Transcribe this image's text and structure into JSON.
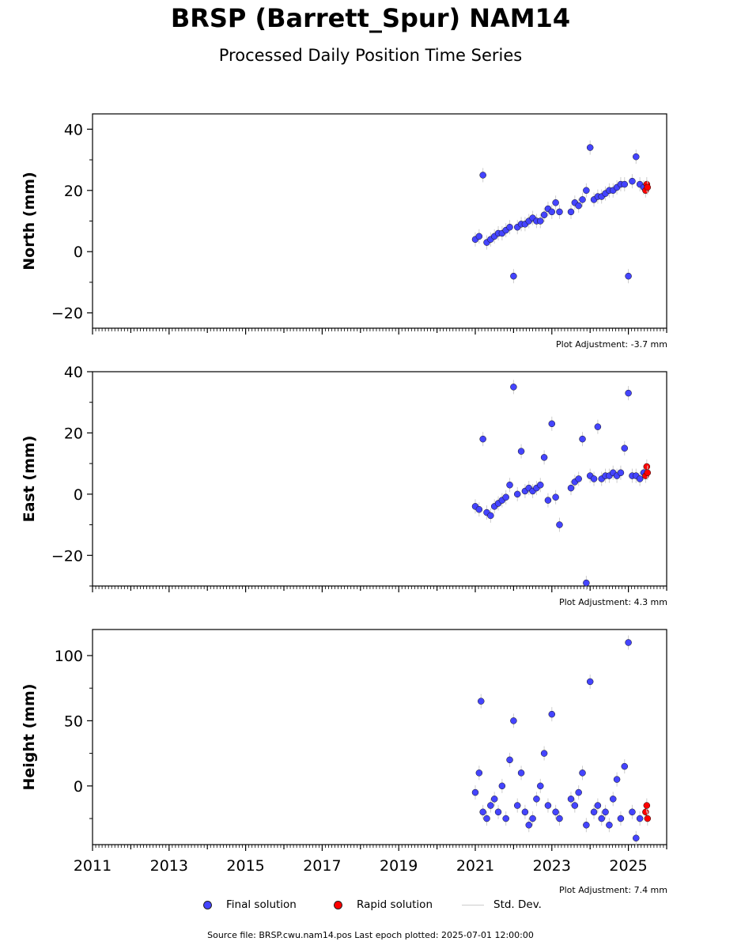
{
  "title": "BRSP (Barrett_Spur) NAM14",
  "subtitle": "Processed Daily Position Time Series",
  "legend": {
    "final": "Final solution",
    "rapid": "Rapid solution",
    "std": "Std. Dev."
  },
  "colors": {
    "final": "#4444ff",
    "rapid": "#ff0000",
    "std": "#cccccc"
  },
  "footer": "Source file: BRSP.cwu.nam14.pos  Last epoch plotted: 2025-07-01 12:00:00",
  "chart_data": [
    {
      "type": "scatter",
      "ylabel": "North (mm)",
      "xlim": [
        2011,
        2026
      ],
      "ylim": [
        -25,
        45
      ],
      "yticks": [
        -20,
        0,
        20,
        40
      ],
      "adjustment": "Plot Adjustment: -3.7 mm",
      "series": [
        {
          "name": "Final solution",
          "x": [
            2021.0,
            2021.1,
            2021.2,
            2021.3,
            2021.4,
            2021.5,
            2021.6,
            2021.7,
            2021.8,
            2021.9,
            2022.0,
            2022.1,
            2022.2,
            2022.3,
            2022.4,
            2022.5,
            2022.6,
            2022.7,
            2022.8,
            2022.9,
            2023.0,
            2023.1,
            2023.2,
            2023.5,
            2023.6,
            2023.7,
            2023.8,
            2023.9,
            2024.0,
            2024.1,
            2024.2,
            2024.3,
            2024.4,
            2024.5,
            2024.6,
            2024.7,
            2024.8,
            2024.9,
            2025.0,
            2025.1,
            2025.2,
            2025.3,
            2025.4
          ],
          "y": [
            4,
            5,
            25,
            3,
            4,
            5,
            6,
            6,
            7,
            8,
            -8,
            8,
            9,
            9,
            10,
            11,
            10,
            10,
            12,
            14,
            13,
            16,
            13,
            13,
            16,
            15,
            17,
            20,
            34,
            17,
            18,
            18,
            19,
            20,
            20,
            21,
            22,
            22,
            -8,
            23,
            31,
            22,
            21
          ]
        },
        {
          "name": "Rapid solution",
          "x": [
            2025.45,
            2025.48,
            2025.5
          ],
          "y": [
            20,
            22,
            21
          ]
        }
      ]
    },
    {
      "type": "scatter",
      "ylabel": "East (mm)",
      "xlim": [
        2011,
        2026
      ],
      "ylim": [
        -30,
        40
      ],
      "yticks": [
        -20,
        0,
        20,
        40
      ],
      "adjustment": "Plot Adjustment: 4.3 mm",
      "series": [
        {
          "name": "Final solution",
          "x": [
            2021.0,
            2021.1,
            2021.2,
            2021.3,
            2021.4,
            2021.5,
            2021.6,
            2021.7,
            2021.8,
            2021.9,
            2022.0,
            2022.1,
            2022.2,
            2022.3,
            2022.4,
            2022.5,
            2022.6,
            2022.7,
            2022.8,
            2022.9,
            2023.0,
            2023.1,
            2023.2,
            2023.5,
            2023.6,
            2023.7,
            2023.8,
            2023.9,
            2024.0,
            2024.1,
            2024.2,
            2024.3,
            2024.4,
            2024.5,
            2024.6,
            2024.7,
            2024.8,
            2024.9,
            2025.0,
            2025.1,
            2025.2,
            2025.3,
            2025.4
          ],
          "y": [
            -4,
            -5,
            18,
            -6,
            -7,
            -4,
            -3,
            -2,
            -1,
            3,
            35,
            0,
            14,
            1,
            2,
            1,
            2,
            3,
            12,
            -2,
            23,
            -1,
            -10,
            2,
            4,
            5,
            18,
            -29,
            6,
            5,
            22,
            5,
            6,
            6,
            7,
            6,
            7,
            15,
            33,
            6,
            6,
            5,
            7
          ]
        },
        {
          "name": "Rapid solution",
          "x": [
            2025.45,
            2025.48,
            2025.5
          ],
          "y": [
            6,
            9,
            7
          ]
        }
      ]
    },
    {
      "type": "scatter",
      "ylabel": "Height (mm)",
      "xlim": [
        2011,
        2026
      ],
      "ylim": [
        -45,
        120
      ],
      "yticks": [
        0,
        50,
        100
      ],
      "xticks": [
        2011,
        2013,
        2015,
        2017,
        2019,
        2021,
        2023,
        2025
      ],
      "adjustment": "Plot Adjustment: 7.4 mm",
      "series": [
        {
          "name": "Final solution",
          "x": [
            2021.0,
            2021.1,
            2021.15,
            2021.2,
            2021.3,
            2021.4,
            2021.5,
            2021.6,
            2021.7,
            2021.8,
            2021.9,
            2022.0,
            2022.1,
            2022.2,
            2022.3,
            2022.4,
            2022.5,
            2022.6,
            2022.7,
            2022.8,
            2022.9,
            2023.0,
            2023.1,
            2023.2,
            2023.5,
            2023.6,
            2023.7,
            2023.8,
            2023.9,
            2024.0,
            2024.1,
            2024.2,
            2024.3,
            2024.4,
            2024.5,
            2024.6,
            2024.7,
            2024.8,
            2024.9,
            2025.0,
            2025.1,
            2025.2,
            2025.3
          ],
          "y": [
            -5,
            10,
            65,
            -20,
            -25,
            -15,
            -10,
            -20,
            0,
            -25,
            20,
            50,
            -15,
            10,
            -20,
            -30,
            -25,
            -10,
            0,
            25,
            -15,
            55,
            -20,
            -25,
            -10,
            -15,
            -5,
            10,
            -30,
            80,
            -20,
            -15,
            -25,
            -20,
            -30,
            -10,
            5,
            -25,
            15,
            110,
            -20,
            -40,
            -25
          ]
        },
        {
          "name": "Rapid solution",
          "x": [
            2025.45,
            2025.48,
            2025.5
          ],
          "y": [
            -20,
            -15,
            -25
          ]
        }
      ]
    }
  ]
}
